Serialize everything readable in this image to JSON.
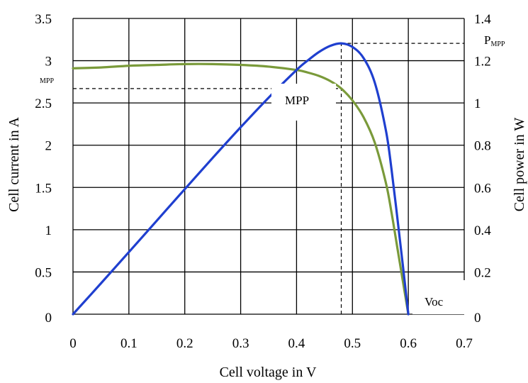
{
  "chart_data": {
    "type": "line",
    "title": "",
    "xlabel": "Cell voltage in V",
    "ylabel_left": "Cell current in A",
    "ylabel_right": "Cell power in W",
    "xlim": [
      0,
      0.7
    ],
    "ylim_left": [
      0,
      3.5
    ],
    "ylim_right": [
      0,
      1.4
    ],
    "grid": true,
    "x_ticks": [
      "0",
      "0.1",
      "0.2",
      "0.3",
      "0.4",
      "0.5",
      "0.6",
      "0.7"
    ],
    "y_left_ticks": [
      "0",
      "0.5",
      "1",
      "1.5",
      "2",
      "2.5",
      "3",
      "3.5"
    ],
    "y_right_ticks": [
      "0",
      "0.2",
      "0.4",
      "0.6",
      "0.8",
      "1",
      "1.2",
      "1.4"
    ],
    "series": [
      {
        "axis": "left",
        "color": "#7a9a3a",
        "x": [
          0,
          0.05,
          0.1,
          0.15,
          0.2,
          0.25,
          0.3,
          0.35,
          0.4,
          0.42,
          0.44,
          0.46,
          0.48,
          0.5,
          0.52,
          0.54,
          0.56,
          0.57,
          0.58,
          0.59,
          0.6
        ],
        "values": [
          2.91,
          2.92,
          2.94,
          2.95,
          2.96,
          2.96,
          2.95,
          2.93,
          2.89,
          2.86,
          2.82,
          2.76,
          2.67,
          2.53,
          2.33,
          2.03,
          1.55,
          1.2,
          0.8,
          0.4,
          0
        ]
      },
      {
        "axis": "right",
        "color": "#1f3fcf",
        "x": [
          0,
          0.05,
          0.1,
          0.15,
          0.2,
          0.25,
          0.3,
          0.35,
          0.4,
          0.42,
          0.44,
          0.46,
          0.48,
          0.5,
          0.52,
          0.54,
          0.56,
          0.57,
          0.58,
          0.59,
          0.6
        ],
        "values": [
          0,
          0.146,
          0.294,
          0.443,
          0.592,
          0.74,
          0.885,
          1.025,
          1.156,
          1.201,
          1.241,
          1.27,
          1.282,
          1.265,
          1.212,
          1.096,
          0.868,
          0.684,
          0.464,
          0.236,
          0
        ]
      }
    ],
    "annotations": {
      "mpp": "MPP",
      "impp_label": "MPP",
      "pmpp_main": "P",
      "pmpp_sub": "MPP",
      "voc": "Voc"
    },
    "mpp_point": {
      "x": 0.48,
      "current": 2.67,
      "power": 1.282
    }
  }
}
